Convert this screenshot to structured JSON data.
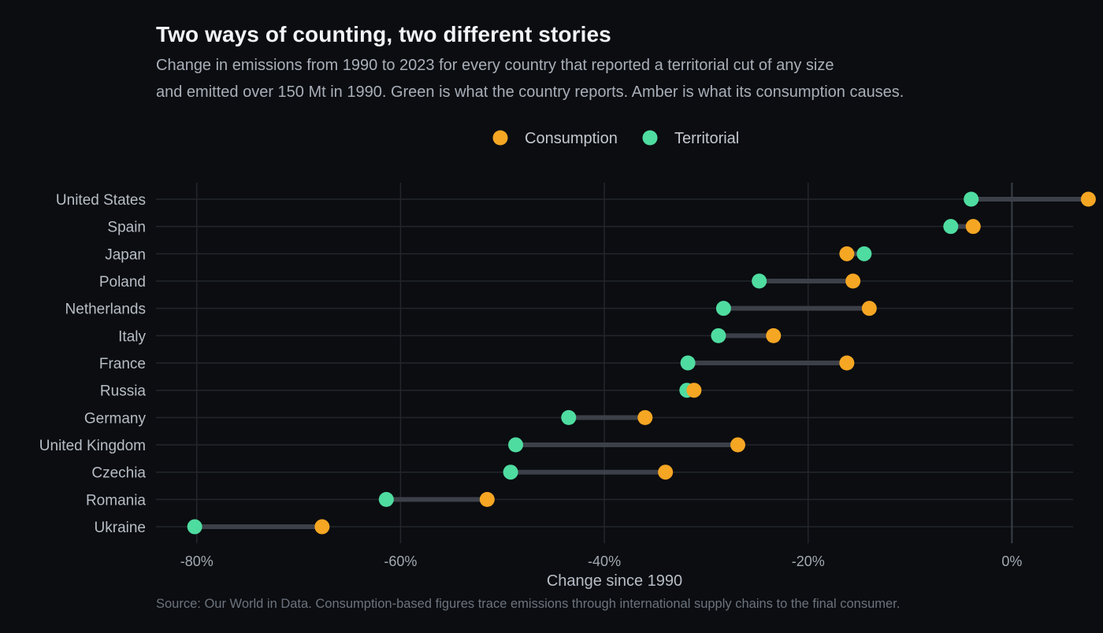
{
  "header": {
    "title": "Two ways of counting, two different stories",
    "subtitle_line1": "Change in emissions from 1990 to 2023 for every country that reported a territorial cut of any size",
    "subtitle_line2": "and emitted over 150 Mt in 1990. Green is what the country reports. Amber is what its consumption causes."
  },
  "source": "Source: Our World in Data. Consumption-based figures trace emissions through international supply chains to the final consumer.",
  "colors": {
    "consumption": "#f5a623",
    "territorial": "#4fdca0",
    "connector": "#3c4048",
    "grid": "#23262c",
    "zero_line": "#3a3f47"
  },
  "chart_data": {
    "type": "dumbbell",
    "xlabel": "Change since 1990",
    "xlim": [
      -84,
      6
    ],
    "xticks": [
      -80,
      -60,
      -40,
      -20,
      0
    ],
    "xtick_labels": [
      "-80%",
      "-60%",
      "-40%",
      "-20%",
      "0%"
    ],
    "legend": {
      "placement": "top-center",
      "entries": [
        {
          "name": "Consumption",
          "color_key": "consumption"
        },
        {
          "name": "Territorial",
          "color_key": "territorial"
        }
      ]
    },
    "grid": true,
    "categories": [
      "United States",
      "Spain",
      "Japan",
      "Poland",
      "Netherlands",
      "Italy",
      "France",
      "Russia",
      "Germany",
      "United Kingdom",
      "Czechia",
      "Romania",
      "Ukraine"
    ],
    "series": [
      {
        "name": "Territorial",
        "values": [
          -4,
          -6,
          -14.5,
          -24.8,
          -28.3,
          -28.8,
          -31.8,
          -31.9,
          -43.5,
          -48.7,
          -49.2,
          -61.4,
          -80.2
        ]
      },
      {
        "name": "Consumption",
        "values": [
          7.5,
          -3.8,
          -16.2,
          -15.6,
          -14,
          -23.4,
          -16.2,
          -31.2,
          -36,
          -26.9,
          -34,
          -51.5,
          -67.7
        ]
      }
    ]
  }
}
